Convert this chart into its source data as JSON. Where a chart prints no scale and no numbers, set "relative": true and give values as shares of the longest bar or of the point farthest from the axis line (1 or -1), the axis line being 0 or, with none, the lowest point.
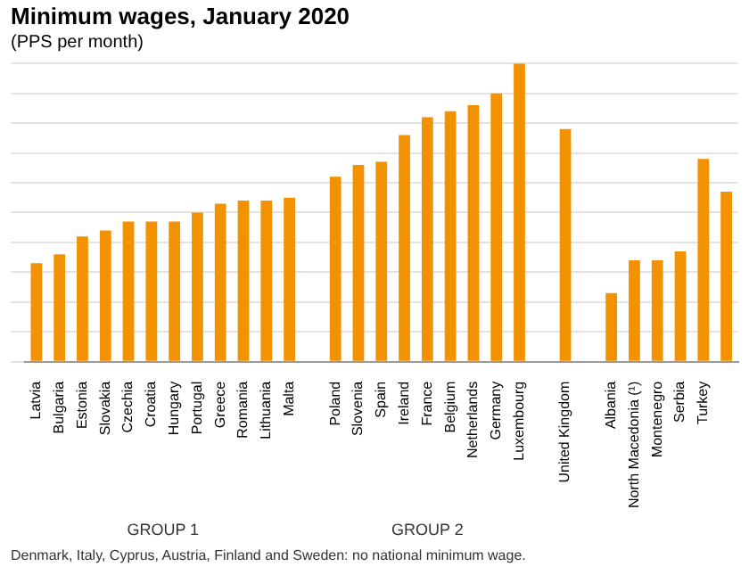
{
  "chart_data": {
    "type": "bar",
    "title": "Minimum wages, January 2020",
    "subtitle": "(PPS per month)",
    "categories": [
      "Latvia",
      "Bulgaria",
      "Estonia",
      "Slovakia",
      "Czechia",
      "Croatia",
      "Hungary",
      "Portugal",
      "Greece",
      "Romania",
      "Lithuania",
      "Malta",
      null,
      "Poland",
      "Slovenia",
      "Spain",
      "Ireland",
      "France",
      "Belgium",
      "Netherlands",
      "Germany",
      "Luxembourg",
      null,
      "United Kingdom",
      null,
      "Albania",
      "North Macedonia (¹)",
      "Montenegro",
      "Serbia",
      "Turkey",
      null
    ],
    "values": [
      0.33,
      0.36,
      0.42,
      0.44,
      0.47,
      0.47,
      0.47,
      0.5,
      0.53,
      0.54,
      0.54,
      0.55,
      null,
      0.62,
      0.66,
      0.67,
      0.76,
      0.82,
      0.84,
      0.86,
      0.9,
      1,
      null,
      0.78,
      null,
      0.23,
      0.34,
      0.34,
      0.37,
      0.68,
      0.57
    ],
    "color": "#f39200",
    "relative": true,
    "grid": "y",
    "legend": false,
    "annotations": [
      "GROUP 1",
      "GROUP 2",
      "Denmark, Italy, Cyprus, Austria, Finland and Sweden: no national minimum wage."
    ]
  }
}
